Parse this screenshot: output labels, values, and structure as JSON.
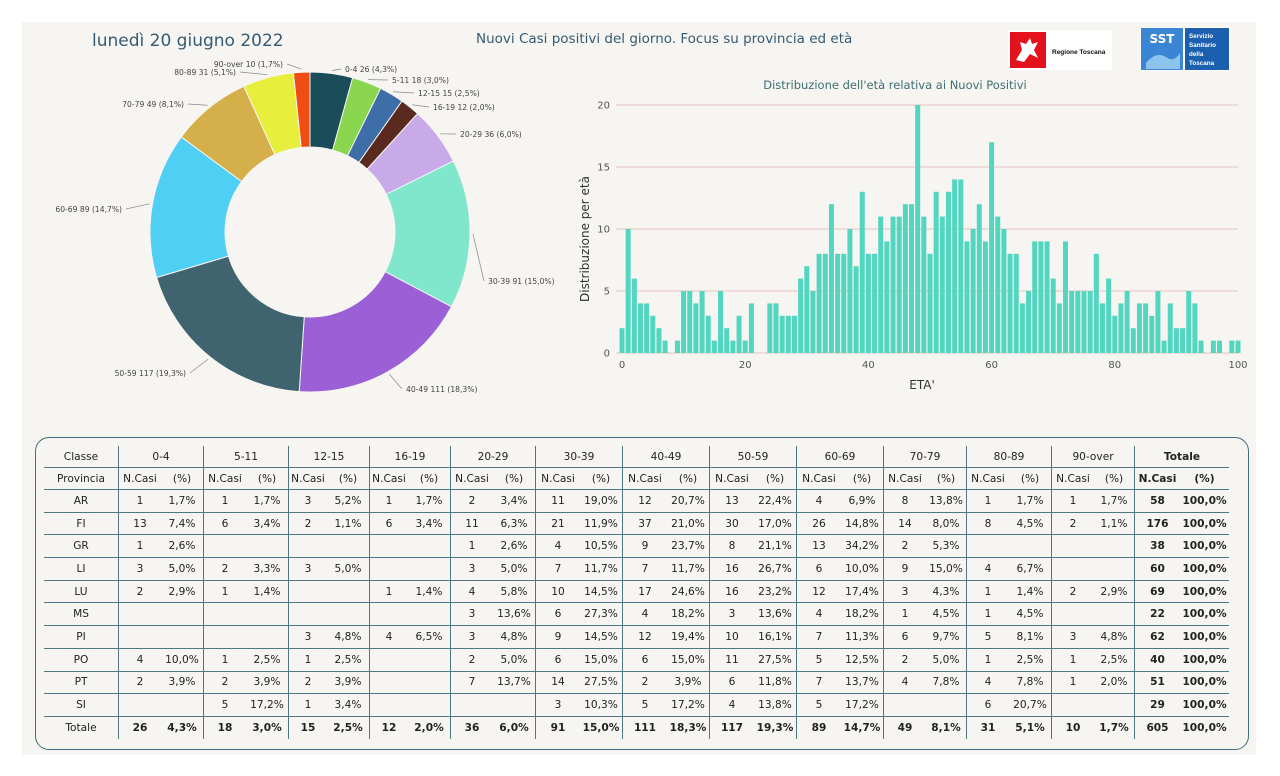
{
  "header": {
    "date": "lunedì 20 giugno 2022",
    "title": "Nuovi Casi positivi del giorno. Focus su provincia ed età",
    "logo_rt": "Regione Toscana",
    "logo_sst_short": "SST",
    "logo_sst_lines": [
      "Servizio",
      "Sanitario",
      "della",
      "Toscana"
    ]
  },
  "chart_data": [
    {
      "type": "pie",
      "donut": true,
      "slices": [
        {
          "label": "0-4 26 (4,3%)",
          "value": 26,
          "color": "#1b4c5a"
        },
        {
          "label": "5-11 18 (3,0%)",
          "value": 18,
          "color": "#8bd64f"
        },
        {
          "label": "12-15 15 (2,5%)",
          "value": 15,
          "color": "#3d6ea8"
        },
        {
          "label": "16-19 12 (2,0%)",
          "value": 12,
          "color": "#5a2a20"
        },
        {
          "label": "20-29 36 (6,0%)",
          "value": 36,
          "color": "#c9aae8"
        },
        {
          "label": "30-39 91 (15,0%)",
          "value": 91,
          "color": "#80e6cc"
        },
        {
          "label": "40-49 111 (18,3%)",
          "value": 111,
          "color": "#9b5fd6"
        },
        {
          "label": "50-59 117 (19,3%)",
          "value": 117,
          "color": "#3f6470"
        },
        {
          "label": "60-69 89 (14,7%)",
          "value": 89,
          "color": "#4ecff3"
        },
        {
          "label": "70-79 49 (8,1%)",
          "value": 49,
          "color": "#d5b04a"
        },
        {
          "label": "80-89 31 (5,1%)",
          "value": 31,
          "color": "#e8ee3c"
        },
        {
          "label": "90-over 10 (1,7%)",
          "value": 10,
          "color": "#f04d14"
        }
      ]
    },
    {
      "type": "bar",
      "title": "Distribuzione dell'età relativa ai Nuovi Positivi",
      "xlabel": "ETA'",
      "ylabel": "Distribuzione per età",
      "xlim": [
        0,
        100
      ],
      "ylim": [
        0,
        20
      ],
      "xticks": [
        0,
        20,
        40,
        60,
        80,
        100
      ],
      "yticks": [
        0,
        5,
        10,
        15,
        20
      ],
      "grid": true,
      "color": "#52d6c0",
      "x": [
        0,
        1,
        2,
        3,
        4,
        5,
        6,
        7,
        8,
        9,
        10,
        11,
        12,
        13,
        14,
        15,
        16,
        17,
        18,
        19,
        20,
        21,
        22,
        23,
        24,
        25,
        26,
        27,
        28,
        29,
        30,
        31,
        32,
        33,
        34,
        35,
        36,
        37,
        38,
        39,
        40,
        41,
        42,
        43,
        44,
        45,
        46,
        47,
        48,
        49,
        50,
        51,
        52,
        53,
        54,
        55,
        56,
        57,
        58,
        59,
        60,
        61,
        62,
        63,
        64,
        65,
        66,
        67,
        68,
        69,
        70,
        71,
        72,
        73,
        74,
        75,
        76,
        77,
        78,
        79,
        80,
        81,
        82,
        83,
        84,
        85,
        86,
        87,
        88,
        89,
        90,
        91,
        92,
        93,
        94,
        95,
        96,
        97,
        98,
        99,
        100
      ],
      "values": [
        2,
        10,
        6,
        4,
        4,
        3,
        2,
        1,
        0,
        1,
        5,
        5,
        4,
        5,
        3,
        1,
        5,
        2,
        1,
        3,
        1,
        4,
        0,
        0,
        4,
        4,
        3,
        3,
        3,
        6,
        7,
        5,
        8,
        8,
        12,
        8,
        8,
        10,
        7,
        13,
        8,
        8,
        11,
        9,
        11,
        11,
        12,
        12,
        20,
        11,
        8,
        13,
        11,
        13,
        14,
        14,
        9,
        10,
        12,
        9,
        17,
        11,
        10,
        8,
        8,
        4,
        5,
        9,
        9,
        9,
        6,
        4,
        9,
        5,
        5,
        5,
        5,
        8,
        4,
        6,
        3,
        4,
        5,
        2,
        4,
        4,
        3,
        5,
        1,
        4,
        2,
        2,
        5,
        4,
        1,
        0,
        1,
        1,
        0,
        1,
        1
      ]
    },
    {
      "type": "table",
      "group_headers": [
        "Classe",
        "0-4",
        "5-11",
        "12-15",
        "16-19",
        "20-29",
        "30-39",
        "40-49",
        "50-59",
        "60-69",
        "70-79",
        "80-89",
        "90-over",
        "Totale"
      ],
      "sub_headers": [
        "Provincia",
        "N.Casi",
        "(%)"
      ],
      "rows": [
        {
          "prov": "AR",
          "cells": [
            "1",
            "1,7%",
            "1",
            "1,7%",
            "3",
            "5,2%",
            "1",
            "1,7%",
            "2",
            "3,4%",
            "11",
            "19,0%",
            "12",
            "20,7%",
            "13",
            "22,4%",
            "4",
            "6,9%",
            "8",
            "13,8%",
            "1",
            "1,7%",
            "1",
            "1,7%"
          ],
          "tot": [
            "58",
            "100,0%"
          ]
        },
        {
          "prov": "FI",
          "cells": [
            "13",
            "7,4%",
            "6",
            "3,4%",
            "2",
            "1,1%",
            "6",
            "3,4%",
            "11",
            "6,3%",
            "21",
            "11,9%",
            "37",
            "21,0%",
            "30",
            "17,0%",
            "26",
            "14,8%",
            "14",
            "8,0%",
            "8",
            "4,5%",
            "2",
            "1,1%"
          ],
          "tot": [
            "176",
            "100,0%"
          ]
        },
        {
          "prov": "GR",
          "cells": [
            "1",
            "2,6%",
            "",
            "",
            "",
            "",
            "",
            "",
            "1",
            "2,6%",
            "4",
            "10,5%",
            "9",
            "23,7%",
            "8",
            "21,1%",
            "13",
            "34,2%",
            "2",
            "5,3%",
            "",
            "",
            "",
            ""
          ],
          "tot": [
            "38",
            "100,0%"
          ]
        },
        {
          "prov": "LI",
          "cells": [
            "3",
            "5,0%",
            "2",
            "3,3%",
            "3",
            "5,0%",
            "",
            "",
            "3",
            "5,0%",
            "7",
            "11,7%",
            "7",
            "11,7%",
            "16",
            "26,7%",
            "6",
            "10,0%",
            "9",
            "15,0%",
            "4",
            "6,7%",
            "",
            ""
          ],
          "tot": [
            "60",
            "100,0%"
          ]
        },
        {
          "prov": "LU",
          "cells": [
            "2",
            "2,9%",
            "1",
            "1,4%",
            "",
            "",
            "1",
            "1,4%",
            "4",
            "5,8%",
            "10",
            "14,5%",
            "17",
            "24,6%",
            "16",
            "23,2%",
            "12",
            "17,4%",
            "3",
            "4,3%",
            "1",
            "1,4%",
            "2",
            "2,9%"
          ],
          "tot": [
            "69",
            "100,0%"
          ]
        },
        {
          "prov": "MS",
          "cells": [
            "",
            "",
            "",
            "",
            "",
            "",
            "",
            "",
            "3",
            "13,6%",
            "6",
            "27,3%",
            "4",
            "18,2%",
            "3",
            "13,6%",
            "4",
            "18,2%",
            "1",
            "4,5%",
            "1",
            "4,5%",
            "",
            ""
          ],
          "tot": [
            "22",
            "100,0%"
          ]
        },
        {
          "prov": "PI",
          "cells": [
            "",
            "",
            "",
            "",
            "3",
            "4,8%",
            "4",
            "6,5%",
            "3",
            "4,8%",
            "9",
            "14,5%",
            "12",
            "19,4%",
            "10",
            "16,1%",
            "7",
            "11,3%",
            "6",
            "9,7%",
            "5",
            "8,1%",
            "3",
            "4,8%"
          ],
          "tot": [
            "62",
            "100,0%"
          ]
        },
        {
          "prov": "PO",
          "cells": [
            "4",
            "10,0%",
            "1",
            "2,5%",
            "1",
            "2,5%",
            "",
            "",
            "2",
            "5,0%",
            "6",
            "15,0%",
            "6",
            "15,0%",
            "11",
            "27,5%",
            "5",
            "12,5%",
            "2",
            "5,0%",
            "1",
            "2,5%",
            "1",
            "2,5%"
          ],
          "tot": [
            "40",
            "100,0%"
          ]
        },
        {
          "prov": "PT",
          "cells": [
            "2",
            "3,9%",
            "2",
            "3,9%",
            "2",
            "3,9%",
            "",
            "",
            "7",
            "13,7%",
            "14",
            "27,5%",
            "2",
            "3,9%",
            "6",
            "11,8%",
            "7",
            "13,7%",
            "4",
            "7,8%",
            "4",
            "7,8%",
            "1",
            "2,0%"
          ],
          "tot": [
            "51",
            "100,0%"
          ]
        },
        {
          "prov": "SI",
          "cells": [
            "",
            "",
            "5",
            "17,2%",
            "1",
            "3,4%",
            "",
            "",
            "",
            "",
            "3",
            "10,3%",
            "5",
            "17,2%",
            "4",
            "13,8%",
            "5",
            "17,2%",
            "",
            "",
            "6",
            "20,7%",
            "",
            ""
          ],
          "tot": [
            "29",
            "100,0%"
          ]
        }
      ],
      "total_row": {
        "prov": "Totale",
        "cells": [
          "26",
          "4,3%",
          "18",
          "3,0%",
          "15",
          "2,5%",
          "12",
          "2,0%",
          "36",
          "6,0%",
          "91",
          "15,0%",
          "111",
          "18,3%",
          "117",
          "19,3%",
          "89",
          "14,7%",
          "49",
          "8,1%",
          "31",
          "5,1%",
          "10",
          "1,7%"
        ],
        "tot": [
          "605",
          "100,0%"
        ]
      }
    }
  ]
}
